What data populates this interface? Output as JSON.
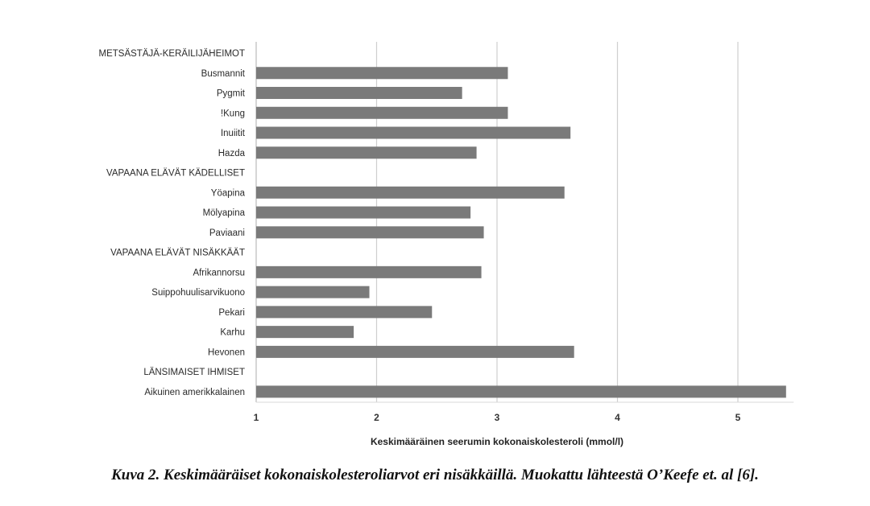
{
  "chart_data": {
    "type": "bar",
    "orientation": "horizontal",
    "categories": [
      "METSÄSTÄJÄ-KERÄILIJÄHEIMOT",
      "Busmannit",
      "Pygmit",
      "!Kung",
      "Inuiitit",
      "Hazda",
      "VAPAANA ELÄVÄT KÄDELLISET",
      "Yöapina",
      "Mölyapina",
      "Paviaani",
      "VAPAANA ELÄVÄT NISÄKKÄÄT",
      "Afrikannorsu",
      "Suippohuulisarvikuono",
      "Pekari",
      "Karhu",
      "Hevonen",
      "LÄNSIMAISET IHMISET",
      "Aikuinen amerikkalainen"
    ],
    "values": [
      null,
      3.09,
      2.71,
      3.09,
      3.61,
      2.83,
      null,
      3.56,
      2.78,
      2.89,
      null,
      2.87,
      1.94,
      2.46,
      1.81,
      3.64,
      null,
      5.4
    ],
    "xlabel": "Keskimääräinen seerumin kokonaiskolesteroli (mmol/l)",
    "ylabel": "",
    "xlim": [
      1,
      5.45
    ],
    "xticks": [
      "1",
      "2",
      "3",
      "4",
      "5"
    ],
    "grid": "vertical",
    "bar_color": "#7a7a7a"
  },
  "caption": "Kuva 2. Keskimääräiset kokonaiskolesteroliarvot eri nisäkkäillä. Muokattu lähteestä O’Keefe et. al [6]."
}
